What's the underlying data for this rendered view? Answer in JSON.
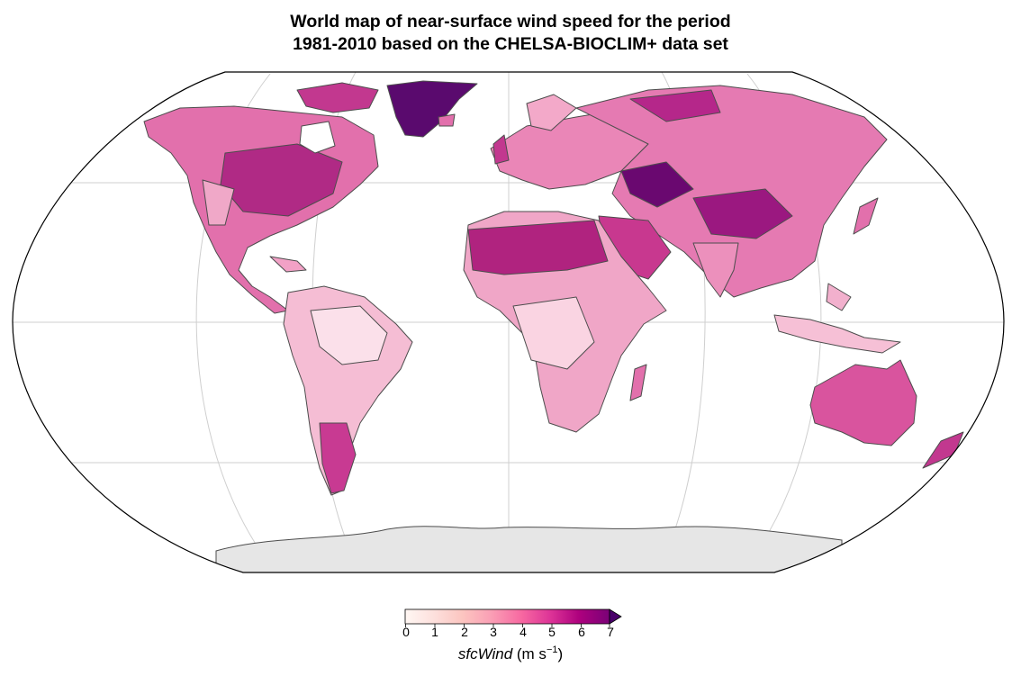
{
  "title": {
    "line1": "World map of near-surface wind speed for the period",
    "line2": "1981-2010 based on the CHELSA-BIOCLIM+ data set"
  },
  "map": {
    "projection": "Robinson",
    "ocean_color": "#ffffff",
    "antarctica_color": "#e6e6e6",
    "border_color": "#4d4d4d",
    "graticule_color": "#cfcfcf"
  },
  "colorbar": {
    "ticks": [
      "0",
      "1",
      "2",
      "3",
      "4",
      "5",
      "6",
      "7"
    ],
    "extend": "max",
    "variable": "sfcWind",
    "units_prefix": "(m s",
    "units_exp": "−1",
    "units_suffix": ")",
    "colors": [
      "#fff7f3",
      "#fde0dd",
      "#fcc5c0",
      "#fa9fb5",
      "#f768a1",
      "#dd3497",
      "#ae017e",
      "#7a0177",
      "#49006a"
    ]
  }
}
